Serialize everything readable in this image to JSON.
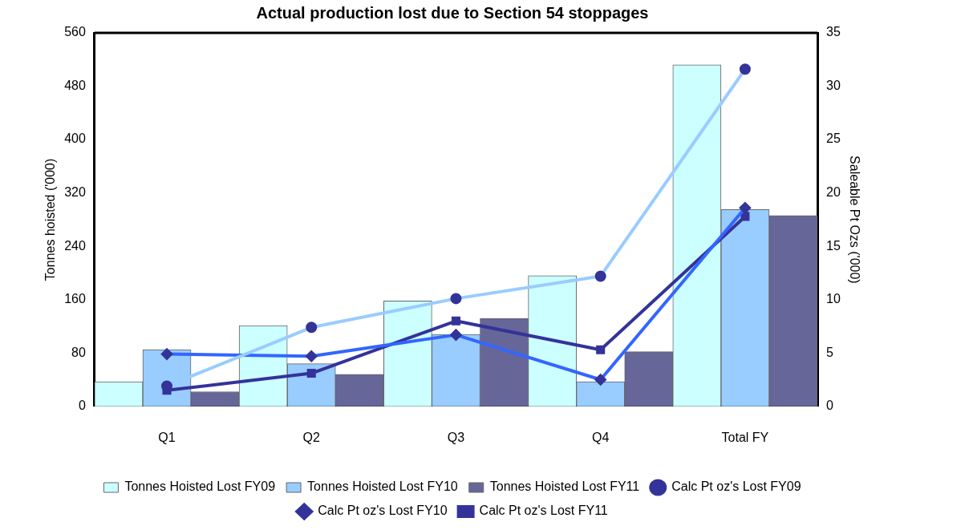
{
  "chart_data": {
    "type": "bar",
    "title": "Actual production lost due to Section 54 stoppages",
    "ylabel": "Tonnes hoisted ('000)",
    "y2label": "Saleable Pt Ozs ('000)",
    "categories": [
      "Q1",
      "Q2",
      "Q3",
      "Q4",
      "Total FY"
    ],
    "series": [
      {
        "name": "Tonnes Hoisted Lost FY09",
        "color": "#ccffff",
        "values": [
          37,
          121,
          158,
          196,
          512
        ]
      },
      {
        "name": "Tonnes Hoisted Lost FY10",
        "color": "#99ccff",
        "values": [
          85,
          64,
          108,
          37,
          295
        ]
      },
      {
        "name": "Tonnes Hoisted Lost FY11",
        "color": "#666699",
        "values": [
          22,
          48,
          132,
          82,
          286
        ]
      },
      {
        "name": "Calc Pt oz's Lost FY09",
        "type": "line",
        "axis": "y2",
        "color": "#99ccff",
        "marker": "circle",
        "values": [
          1.9,
          7.4,
          10.1,
          12.2,
          31.6
        ]
      },
      {
        "name": "Calc Pt oz's Lost FY10",
        "type": "line",
        "axis": "y2",
        "color": "#3366ff",
        "marker": "diamond",
        "values": [
          4.9,
          4.7,
          6.7,
          2.5,
          18.6
        ]
      },
      {
        "name": "Calc Pt oz's Lost FY11",
        "type": "line",
        "axis": "y2",
        "color": "#333399",
        "marker": "square",
        "values": [
          1.5,
          3.1,
          8.0,
          5.3,
          17.8
        ]
      }
    ],
    "ylim": [
      0,
      560
    ],
    "yticks": [
      0,
      80,
      160,
      240,
      320,
      400,
      480,
      560
    ],
    "y2lim": [
      0,
      35
    ],
    "y2ticks": [
      0,
      5,
      10,
      15,
      20,
      25,
      30,
      35
    ],
    "grid": false,
    "legend": "bottom"
  }
}
